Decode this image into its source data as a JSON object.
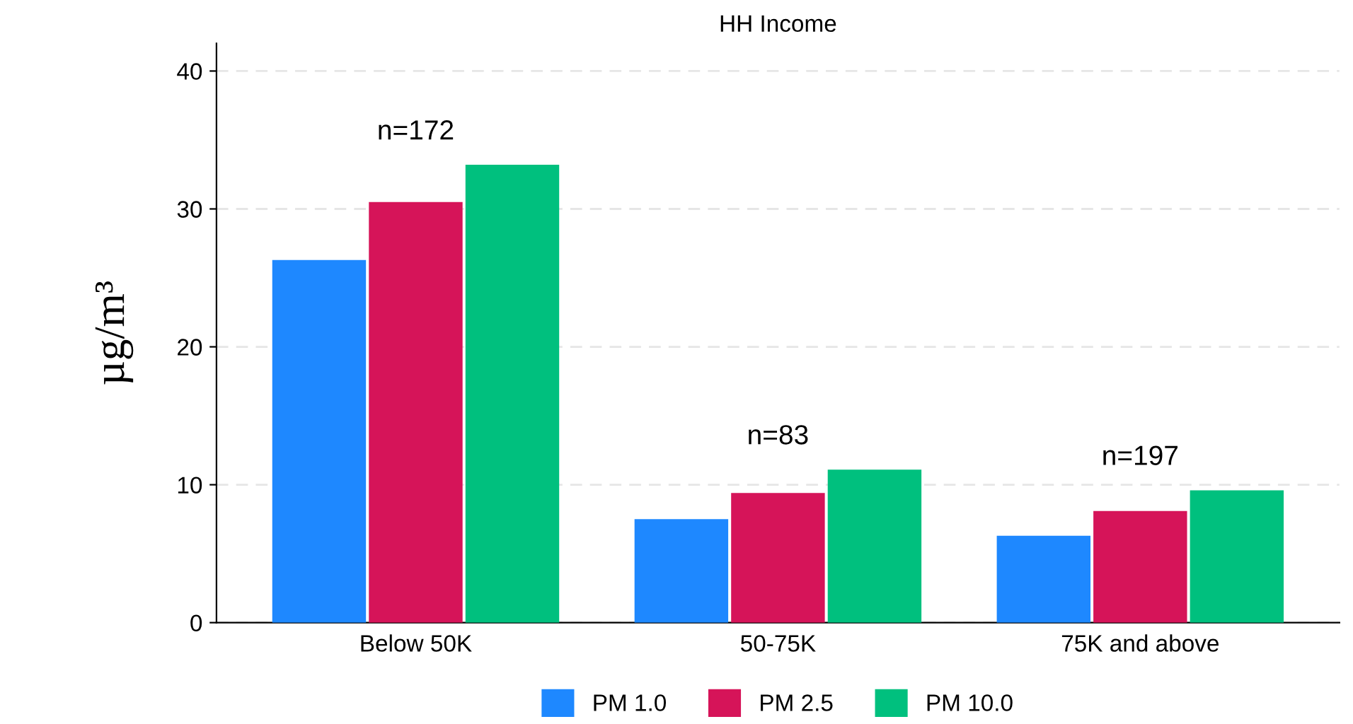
{
  "chart_data": {
    "type": "bar",
    "title": "HH Income",
    "ylabel": "µg/m³",
    "categories": [
      "Below 50K",
      "50-75K",
      "75K and above"
    ],
    "series": [
      {
        "name": "PM 1.0",
        "color": "#1e88ff",
        "values": [
          26.3,
          7.5,
          6.3
        ]
      },
      {
        "name": "PM 2.5",
        "color": "#d61459",
        "values": [
          30.5,
          9.4,
          8.1
        ]
      },
      {
        "name": "PM 10.0",
        "color": "#00c07e",
        "values": [
          33.2,
          11.1,
          9.6
        ]
      }
    ],
    "annotations": [
      "n=172",
      "n=83",
      "n=197"
    ],
    "ylim": [
      0,
      42
    ],
    "yticks": [
      0,
      10,
      20,
      30,
      40
    ],
    "grid": "y",
    "legend": "bottom"
  }
}
